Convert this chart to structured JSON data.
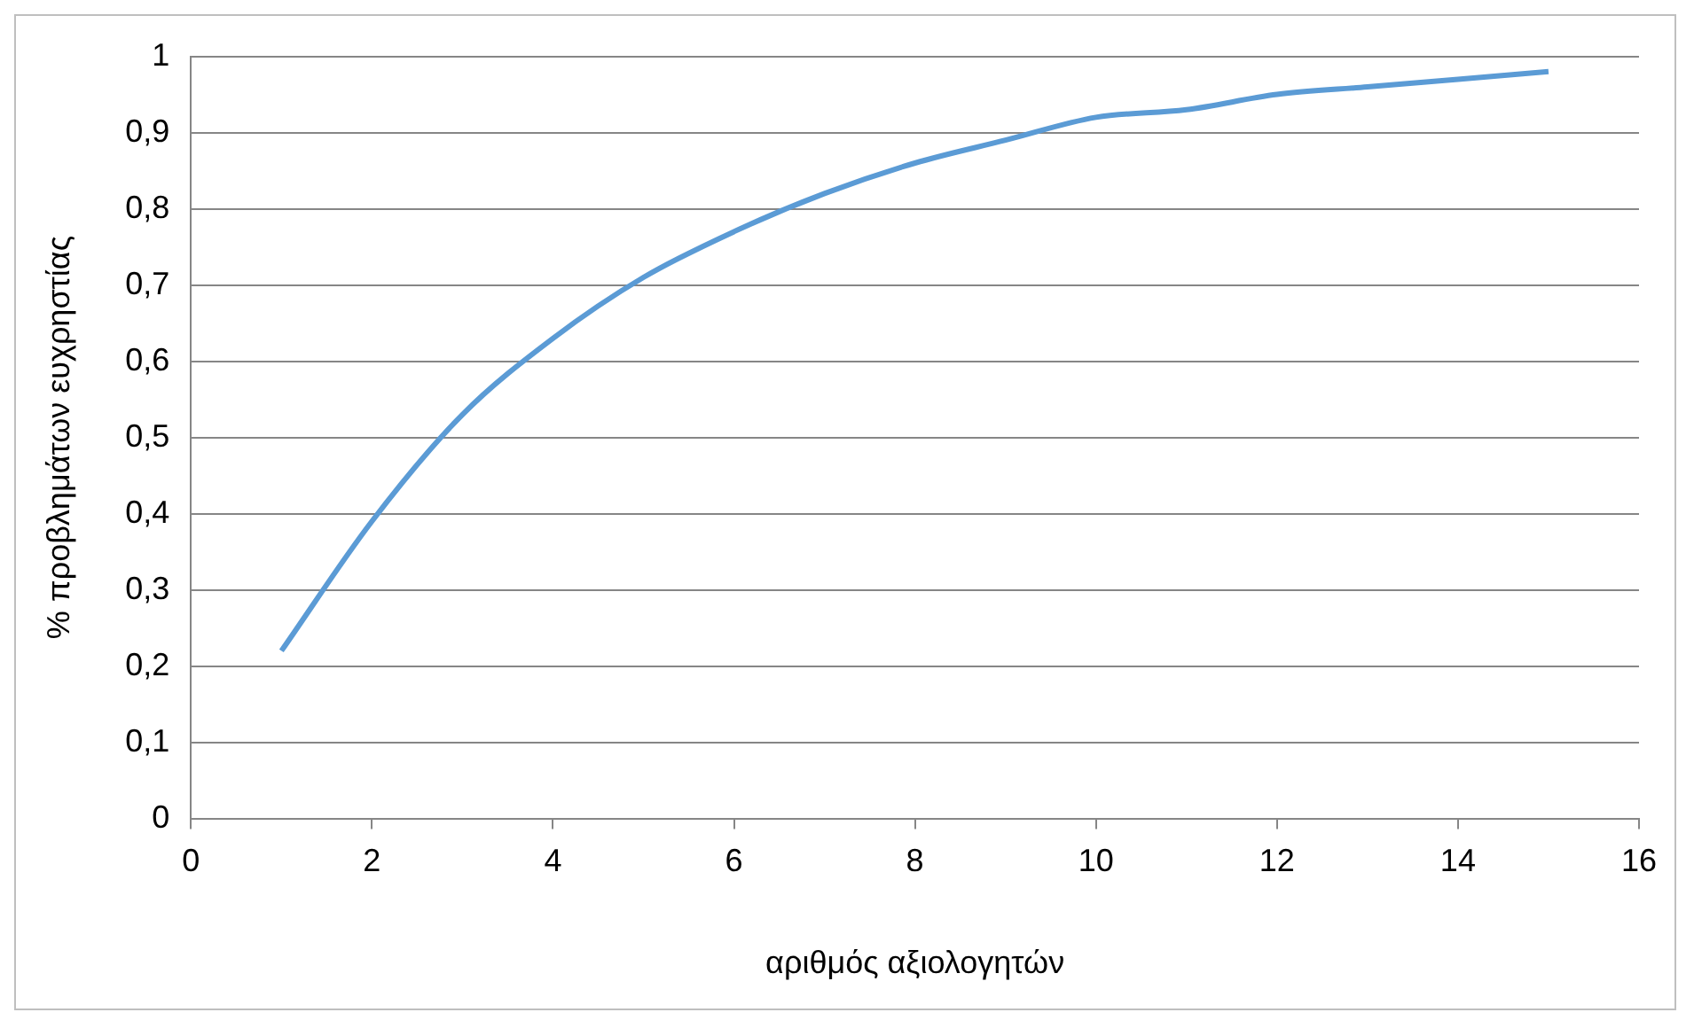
{
  "chart_data": {
    "type": "line",
    "xlabel": "αριθμός αξιολογητών",
    "ylabel": "% προβλημάτων ευχρηστίας",
    "x": [
      1,
      2,
      3,
      4,
      5,
      6,
      7,
      8,
      9,
      10,
      11,
      12,
      13,
      14,
      15
    ],
    "series": [
      {
        "color": "#5b9bd5",
        "values": [
          0.22,
          0.39,
          0.53,
          0.63,
          0.71,
          0.77,
          0.82,
          0.86,
          0.89,
          0.92,
          0.93,
          0.95,
          0.96,
          0.97,
          0.98
        ]
      }
    ],
    "xlim": [
      0,
      16
    ],
    "xticks": [
      0,
      2,
      4,
      6,
      8,
      10,
      12,
      14,
      16
    ],
    "ylim": [
      0,
      1
    ],
    "yticks": [
      0,
      {
        "value": 0.1,
        "label": "0,1"
      },
      {
        "value": 0.2,
        "label": "0,2"
      },
      {
        "value": 0.3,
        "label": "0,3"
      },
      {
        "value": 0.4,
        "label": "0,4"
      },
      {
        "value": 0.5,
        "label": "0,5"
      },
      {
        "value": 0.6,
        "label": "0,6"
      },
      {
        "value": 0.7,
        "label": "0,7"
      },
      {
        "value": 0.8,
        "label": "0,8"
      },
      {
        "value": 0.9,
        "label": "0,9"
      },
      1
    ],
    "grid": "y",
    "legend": false,
    "marker": "none",
    "line_style": "solid"
  }
}
